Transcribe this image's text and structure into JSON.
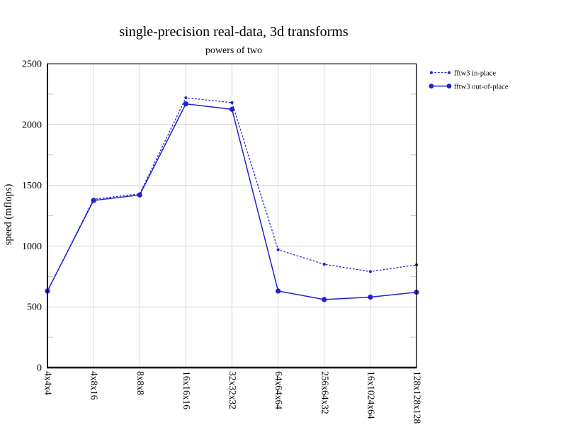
{
  "chart_data": {
    "type": "line",
    "title": "single-precision real-data, 3d transforms",
    "subtitle": "powers of two",
    "ylabel": "speed (mflops)",
    "xlabel": "",
    "ylim": [
      0,
      2500
    ],
    "yticks": [
      0,
      500,
      1000,
      1500,
      2000,
      2500
    ],
    "y_minor_step": 250,
    "grid": true,
    "legend_position": "top-right-outside",
    "line_color": "#2121cd",
    "grid_color": "#d8d8d8",
    "minor_tick_color": "#c8c8c8",
    "categories": [
      "4x4x4",
      "4x8x16",
      "8x8x8",
      "16x16x16",
      "32x32x32",
      "64x64x64",
      "256x64x32",
      "16x1024x64",
      "128x128x128"
    ],
    "series": [
      {
        "name": "fftw3 in-place",
        "style": "dotted",
        "marker": "small-circle",
        "values": [
          630,
          1385,
          1430,
          2220,
          2180,
          970,
          850,
          790,
          845
        ]
      },
      {
        "name": "fftw3 out-of-place",
        "style": "solid",
        "marker": "circle",
        "values": [
          630,
          1375,
          1420,
          2170,
          2125,
          630,
          560,
          580,
          620
        ]
      }
    ]
  }
}
